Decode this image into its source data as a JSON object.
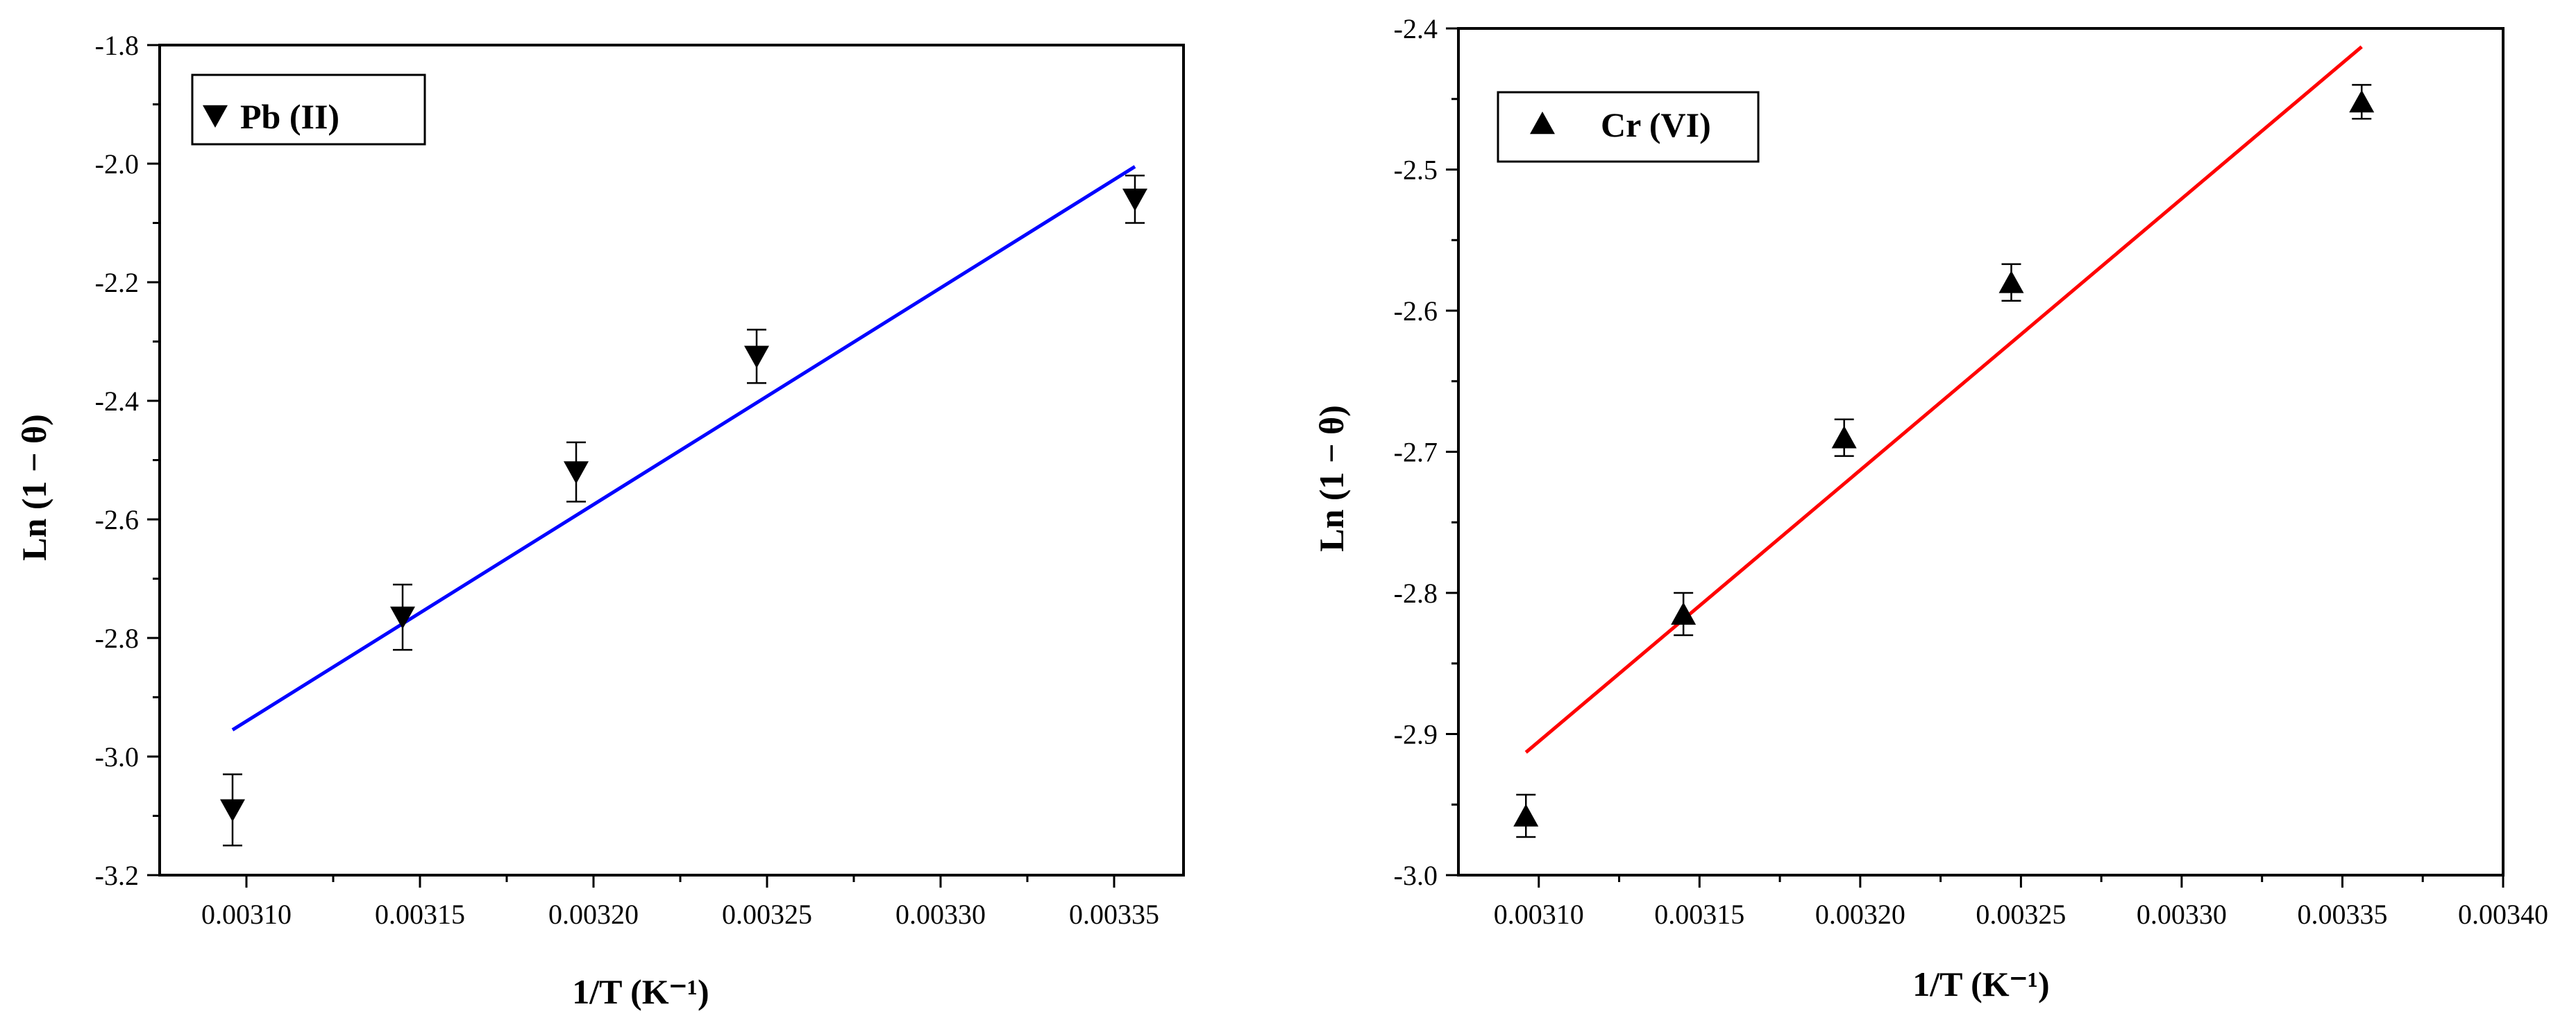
{
  "chart_data": [
    {
      "type": "scatter",
      "title": "",
      "xlabel": "1/T (K⁻¹)",
      "ylabel": "Ln (1 − θ)",
      "xlim": [
        0.003075,
        0.00337
      ],
      "ylim": [
        -3.2,
        -1.8
      ],
      "x_ticks": [
        "0.00310",
        "0.00315",
        "0.00320",
        "0.00325",
        "0.00330",
        "0.00335"
      ],
      "y_ticks": [
        "-3.2",
        "-3.0",
        "-2.8",
        "-2.6",
        "-2.4",
        "-2.2",
        "-2.0",
        "-1.8"
      ],
      "legend_position": "top-left",
      "grid": false,
      "series": [
        {
          "name": "Pb (II)",
          "marker": "triangle-down",
          "x": [
            0.003096,
            0.003145,
            0.003195,
            0.003247,
            0.003356
          ],
          "y": [
            -3.09,
            -2.765,
            -2.52,
            -2.325,
            -2.06
          ],
          "err": [
            0.06,
            0.055,
            0.05,
            0.045,
            0.04
          ]
        }
      ],
      "fit_line": {
        "x": [
          0.003096,
          0.003356
        ],
        "y": [
          -2.955,
          -2.005
        ],
        "color": "#0000ff"
      }
    },
    {
      "type": "scatter",
      "title": "",
      "xlabel": "1/T (K⁻¹)",
      "ylabel": "Ln (1 − θ)",
      "xlim": [
        0.003075,
        0.0034
      ],
      "ylim": [
        -3.0,
        -2.4
      ],
      "x_ticks": [
        "0.00310",
        "0.00315",
        "0.00320",
        "0.00325",
        "0.00330",
        "0.00335",
        "0.00340"
      ],
      "y_ticks": [
        "-3.0",
        "-2.9",
        "-2.8",
        "-2.7",
        "-2.6",
        "-2.5",
        "-2.4"
      ],
      "legend_position": "top-left",
      "grid": false,
      "series": [
        {
          "name": "Cr (VI)",
          "marker": "triangle-up",
          "x": [
            0.003096,
            0.003145,
            0.003195,
            0.003247,
            0.003356
          ],
          "y": [
            -2.958,
            -2.815,
            -2.69,
            -2.58,
            -2.452
          ],
          "err": [
            0.015,
            0.015,
            0.013,
            0.013,
            0.012
          ]
        }
      ],
      "fit_line": {
        "x": [
          0.003096,
          0.003356
        ],
        "y": [
          -2.913,
          -2.413
        ],
        "color": "#ff0000"
      }
    }
  ]
}
